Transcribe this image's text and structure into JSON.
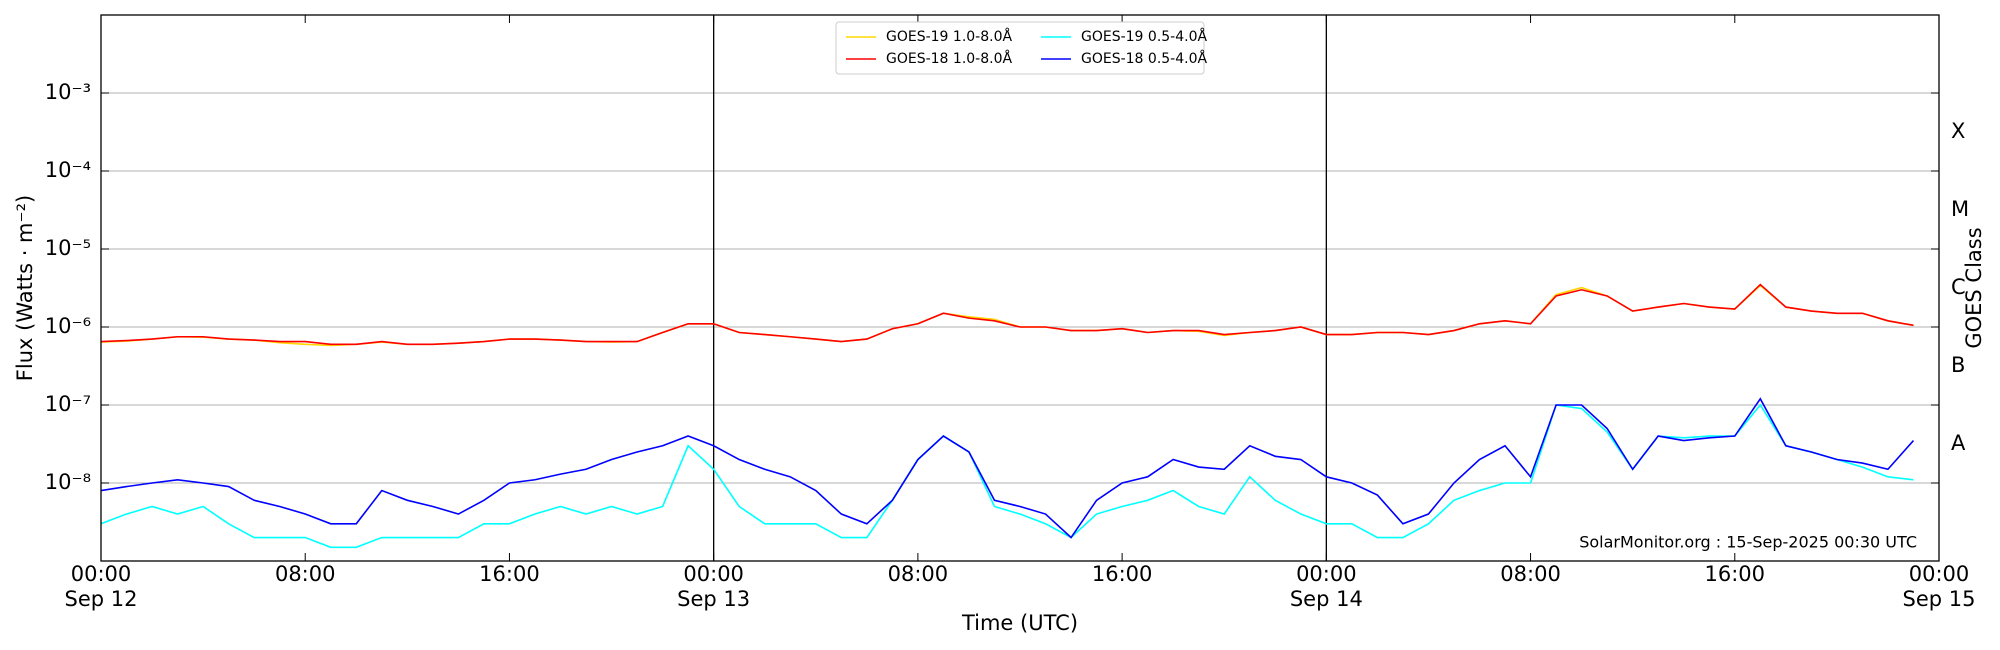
{
  "chart_data": {
    "type": "line",
    "xlabel": "Time (UTC)",
    "ylabel": "Flux (Watts · m⁻²)",
    "y2label": "GOES Class",
    "annotation": "SolarMonitor.org : 15-Sep-2025 00:30 UTC",
    "log_y": true,
    "grid": true,
    "legend": "upper center",
    "xlim": [
      0,
      72
    ],
    "xticks": [
      {
        "value": 0,
        "label": "00:00"
      },
      {
        "value": 8,
        "label": "08:00"
      },
      {
        "value": 16,
        "label": "16:00"
      },
      {
        "value": 24,
        "label": "00:00"
      },
      {
        "value": 32,
        "label": "08:00"
      },
      {
        "value": 40,
        "label": "16:00"
      },
      {
        "value": 48,
        "label": "00:00"
      },
      {
        "value": 56,
        "label": "08:00"
      },
      {
        "value": 64,
        "label": "16:00"
      },
      {
        "value": 72,
        "label": "00:00"
      }
    ],
    "day_labels": [
      {
        "value": 0,
        "label": "Sep 12"
      },
      {
        "value": 24,
        "label": "Sep 13"
      },
      {
        "value": 48,
        "label": "Sep 14"
      },
      {
        "value": 72,
        "label": "Sep 15"
      }
    ],
    "ylim": [
      1e-09,
      0.01
    ],
    "yticks": [
      {
        "value": 1e-08,
        "label": "10⁻⁸"
      },
      {
        "value": 1e-07,
        "label": "10⁻⁷"
      },
      {
        "value": 1e-06,
        "label": "10⁻⁶"
      },
      {
        "value": 1e-05,
        "label": "10⁻⁵"
      },
      {
        "value": 0.0001,
        "label": "10⁻⁴"
      },
      {
        "value": 0.001,
        "label": "10⁻³"
      }
    ],
    "class_labels": [
      {
        "value": 3.16e-08,
        "label": "A"
      },
      {
        "value": 3.16e-07,
        "label": "B"
      },
      {
        "value": 3.16e-06,
        "label": "C"
      },
      {
        "value": 3.16e-05,
        "label": "M"
      },
      {
        "value": 0.000316,
        "label": "X"
      }
    ],
    "x": [
      0,
      1,
      2,
      3,
      4,
      5,
      6,
      7,
      8,
      9,
      10,
      11,
      12,
      13,
      14,
      15,
      16,
      17,
      18,
      19,
      20,
      21,
      22,
      23,
      24,
      25,
      26,
      27,
      28,
      29,
      30,
      31,
      32,
      33,
      34,
      35,
      36,
      37,
      38,
      39,
      40,
      41,
      42,
      43,
      44,
      45,
      46,
      47,
      48,
      49,
      50,
      51,
      52,
      53,
      54,
      55,
      56,
      57,
      58,
      59,
      60,
      61,
      62,
      63,
      64,
      65,
      66,
      67,
      68,
      69,
      70,
      71
    ],
    "series": [
      {
        "name": "GOES-19 1.0-8.0Å",
        "color": "#ffd700",
        "values": [
          6.4e-07,
          6.6e-07,
          7e-07,
          7.5e-07,
          7.4e-07,
          7e-07,
          6.8e-07,
          6.3e-07,
          6e-07,
          5.8e-07,
          6e-07,
          6.4e-07,
          6e-07,
          6e-07,
          6.2e-07,
          6.5e-07,
          7e-07,
          7e-07,
          6.8e-07,
          6.5e-07,
          6.4e-07,
          6.5e-07,
          8.5e-07,
          1.1e-06,
          1.1e-06,
          8.5e-07,
          8e-07,
          7.5e-07,
          7e-07,
          6.5e-07,
          7e-07,
          9.5e-07,
          1.1e-06,
          1.5e-06,
          1.35e-06,
          1.25e-06,
          1e-06,
          1e-06,
          9e-07,
          9e-07,
          9.5e-07,
          8.5e-07,
          9e-07,
          8.8e-07,
          7.8e-07,
          8.5e-07,
          9e-07,
          1e-06,
          8e-07,
          8e-07,
          8.5e-07,
          8.5e-07,
          8e-07,
          9e-07,
          1.1e-06,
          1.2e-06,
          1.1e-06,
          2.6e-06,
          3.2e-06,
          2.5e-06,
          1.6e-06,
          1.8e-06,
          2e-06,
          1.8e-06,
          1.7e-06,
          3.4e-06,
          1.8e-06,
          1.6e-06,
          1.5e-06,
          1.5e-06,
          1.2e-06,
          1.05e-06
        ]
      },
      {
        "name": "GOES-18 1.0-8.0Å",
        "color": "#ff0000",
        "values": [
          6.5e-07,
          6.7e-07,
          7e-07,
          7.5e-07,
          7.5e-07,
          7e-07,
          6.8e-07,
          6.5e-07,
          6.5e-07,
          6e-07,
          6e-07,
          6.5e-07,
          6e-07,
          6e-07,
          6.2e-07,
          6.5e-07,
          7e-07,
          7e-07,
          6.8e-07,
          6.5e-07,
          6.5e-07,
          6.5e-07,
          8.5e-07,
          1.1e-06,
          1.1e-06,
          8.5e-07,
          8e-07,
          7.5e-07,
          7e-07,
          6.5e-07,
          7e-07,
          9.5e-07,
          1.1e-06,
          1.5e-06,
          1.3e-06,
          1.2e-06,
          1e-06,
          1e-06,
          9e-07,
          9e-07,
          9.5e-07,
          8.5e-07,
          9e-07,
          9e-07,
          8e-07,
          8.5e-07,
          9e-07,
          1e-06,
          8e-07,
          8e-07,
          8.5e-07,
          8.5e-07,
          8e-07,
          9e-07,
          1.1e-06,
          1.2e-06,
          1.1e-06,
          2.5e-06,
          3e-06,
          2.5e-06,
          1.6e-06,
          1.8e-06,
          2e-06,
          1.8e-06,
          1.7e-06,
          3.5e-06,
          1.8e-06,
          1.6e-06,
          1.5e-06,
          1.5e-06,
          1.2e-06,
          1.05e-06
        ]
      },
      {
        "name": "GOES-19 0.5-4.0Å",
        "color": "#00ffff",
        "values": [
          3e-09,
          4e-09,
          5e-09,
          4e-09,
          5e-09,
          3e-09,
          2e-09,
          2e-09,
          2e-09,
          1.5e-09,
          1.5e-09,
          2e-09,
          2e-09,
          2e-09,
          2e-09,
          3e-09,
          3e-09,
          4e-09,
          5e-09,
          4e-09,
          5e-09,
          4e-09,
          5e-09,
          3e-08,
          1.5e-08,
          5e-09,
          3e-09,
          3e-09,
          3e-09,
          2e-09,
          2e-09,
          6e-09,
          2e-08,
          4e-08,
          2.5e-08,
          5e-09,
          4e-09,
          3e-09,
          2e-09,
          4e-09,
          5e-09,
          6e-09,
          8e-09,
          5e-09,
          4e-09,
          1.2e-08,
          6e-09,
          4e-09,
          3e-09,
          3e-09,
          2e-09,
          2e-09,
          3e-09,
          6e-09,
          8e-09,
          1e-08,
          1e-08,
          1e-07,
          9e-08,
          4.5e-08,
          1.5e-08,
          4e-08,
          3.8e-08,
          4e-08,
          4e-08,
          1e-07,
          3e-08,
          2.5e-08,
          2e-08,
          1.6e-08,
          1.2e-08,
          1.1e-08
        ]
      },
      {
        "name": "GOES-18 0.5-4.0Å",
        "color": "#0000ff",
        "values": [
          8e-09,
          9e-09,
          1e-08,
          1.1e-08,
          1e-08,
          9e-09,
          6e-09,
          5e-09,
          4e-09,
          3e-09,
          3e-09,
          8e-09,
          6e-09,
          5e-09,
          4e-09,
          6e-09,
          1e-08,
          1.1e-08,
          1.3e-08,
          1.5e-08,
          2e-08,
          2.5e-08,
          3e-08,
          4e-08,
          3e-08,
          2e-08,
          1.5e-08,
          1.2e-08,
          8e-09,
          4e-09,
          3e-09,
          6e-09,
          2e-08,
          4e-08,
          2.5e-08,
          6e-09,
          5e-09,
          4e-09,
          2e-09,
          6e-09,
          1e-08,
          1.2e-08,
          2e-08,
          1.6e-08,
          1.5e-08,
          3e-08,
          2.2e-08,
          2e-08,
          1.2e-08,
          1e-08,
          7e-09,
          3e-09,
          4e-09,
          1e-08,
          2e-08,
          3e-08,
          1.2e-08,
          1e-07,
          1e-07,
          5e-08,
          1.5e-08,
          4e-08,
          3.5e-08,
          3.8e-08,
          4e-08,
          1.2e-07,
          3e-08,
          2.5e-08,
          2e-08,
          1.8e-08,
          1.5e-08,
          3.5e-08
        ]
      }
    ]
  }
}
